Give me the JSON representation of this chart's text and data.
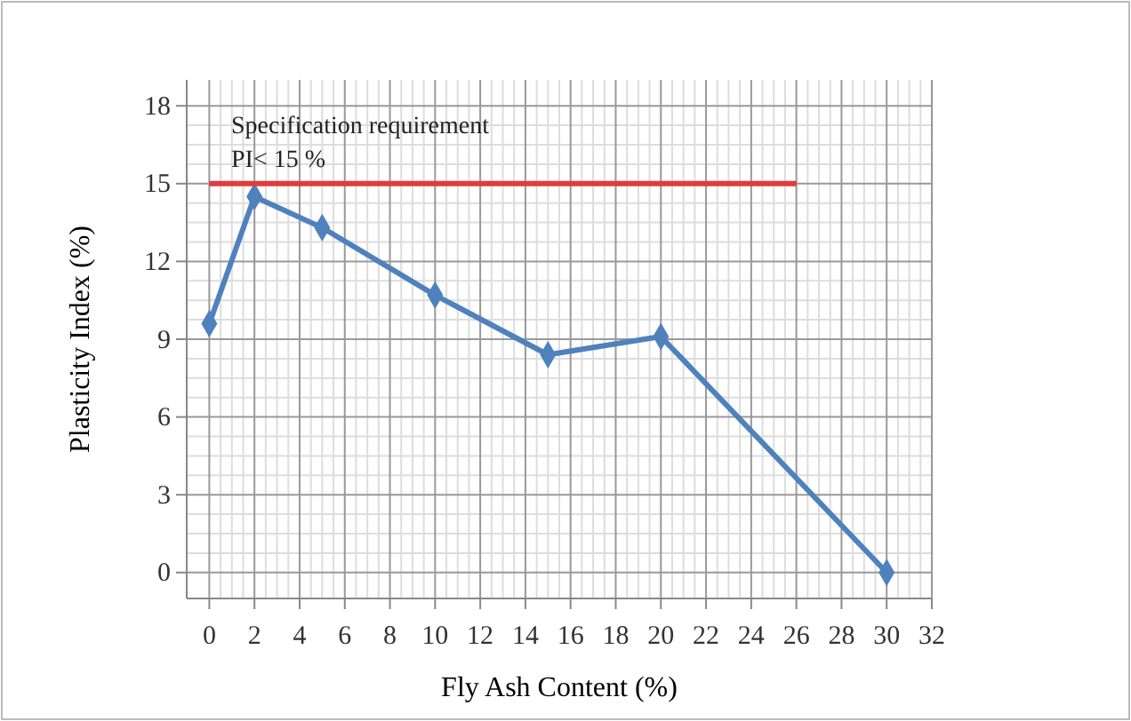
{
  "chart_data": {
    "type": "line",
    "xlabel": "Fly Ash Content (%)",
    "ylabel": "Plasticity  Index  (%)",
    "series": [
      {
        "color": "#4f81bd",
        "x": [
          0,
          2,
          5,
          10,
          15,
          20,
          30
        ],
        "values": [
          9.6,
          14.5,
          13.3,
          10.7,
          8.4,
          9.1,
          0
        ],
        "marker": "diamond"
      },
      {
        "color": "#e03c3c",
        "x": [
          0,
          26
        ],
        "values": [
          15,
          15
        ],
        "marker": "none"
      }
    ],
    "annotations": [
      "Specification requirement",
      "PI< 15 %"
    ],
    "xlim": [
      -1,
      32
    ],
    "xticks": [
      0,
      2,
      4,
      6,
      8,
      10,
      12,
      14,
      16,
      18,
      20,
      22,
      24,
      26,
      28,
      30,
      32
    ],
    "ylim": [
      -1,
      19
    ],
    "yticks": [
      0,
      3,
      6,
      9,
      12,
      15,
      18
    ],
    "grid": true
  }
}
